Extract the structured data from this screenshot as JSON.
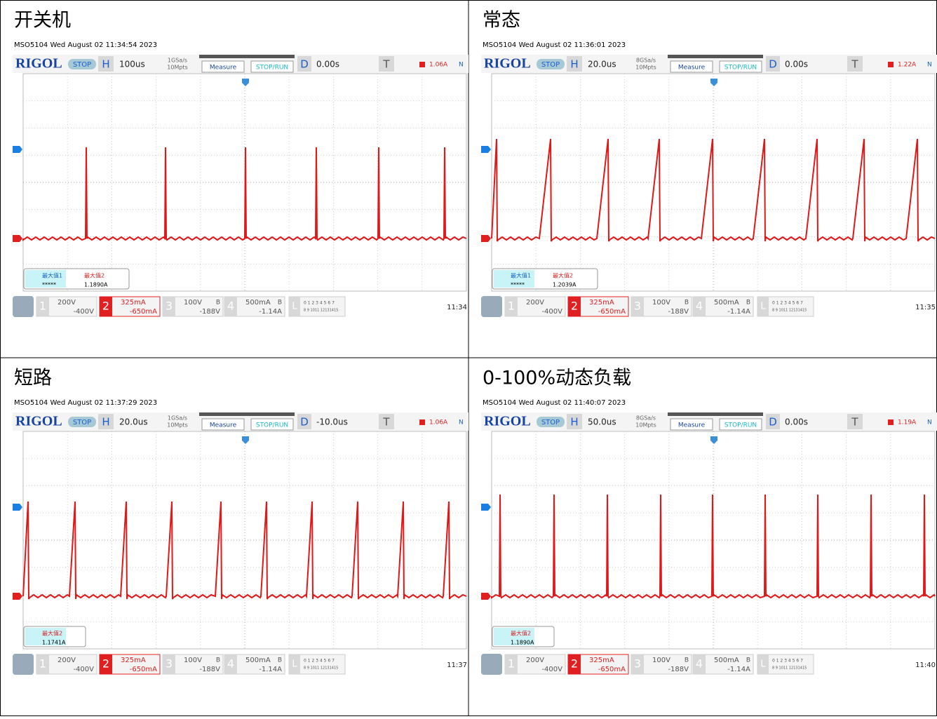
{
  "common": {
    "brand": "RIGOL",
    "stop": "STOP",
    "h": "H",
    "measure": "Measure",
    "stoprun": "STOP/RUN",
    "d": "D",
    "t": "T",
    "n": "N",
    "ch1": "1",
    "ch2": "2",
    "ch3": "3",
    "ch4": "4",
    "l": "L",
    "b": "B",
    "ch1_scale": "200V",
    "ch1_offset": "-400V",
    "ch2_scale": "325mA",
    "ch2_offset": "-650mA",
    "ch3_scale": "100V",
    "ch3_offset": "-188V",
    "ch4_scale": "500mA",
    "ch4_offset": "-1.14A",
    "digital1": "0 1 2 3 4 5 6 7",
    "digital2": "8 9 1011 12131415"
  },
  "panels": [
    {
      "title": "开关机",
      "header": "MSO5104  Wed August 02 11:34:54 2023",
      "timebase": "100us",
      "sample_rate": "1GSa/s",
      "memory": "10Mpts",
      "delay": "0.00s",
      "trigger_level": "1.06A",
      "measurements": [
        {
          "label": "最大值1",
          "value": "*****",
          "color": "#1a5fd0"
        },
        {
          "label": "最大值2",
          "value": "1.1890A",
          "color": "#e02020"
        }
      ],
      "clock": "11:34"
    },
    {
      "title": "常态",
      "header": "MSO5104  Wed August 02 11:36:01 2023",
      "timebase": "20.0us",
      "sample_rate": "8GSa/s",
      "memory": "10Mpts",
      "delay": "0.00s",
      "trigger_level": "1.22A",
      "measurements": [
        {
          "label": "最大值1",
          "value": "*****",
          "color": "#1a5fd0"
        },
        {
          "label": "最大值2",
          "value": "1.2039A",
          "color": "#e02020"
        }
      ],
      "clock": "11:35"
    },
    {
      "title": "短路",
      "header": "MSO5104  Wed August 02 11:37:29 2023",
      "timebase": "20.0us",
      "sample_rate": "1GSa/s",
      "memory": "10Mpts",
      "delay": "-10.0us",
      "trigger_level": "1.06A",
      "measurements": [
        {
          "label": "最大值2",
          "value": "1.1741A",
          "color": "#e02020"
        }
      ],
      "clock": "11:37"
    },
    {
      "title": "0-100%动态负载",
      "header": "MSO5104  Wed August 02 11:40:07 2023",
      "timebase": "50.0us",
      "sample_rate": "8GSa/s",
      "memory": "10Mpts",
      "delay": "0.00s",
      "trigger_level": "1.19A",
      "measurements": [
        {
          "label": "最大值2",
          "value": "1.1890A",
          "color": "#e02020"
        }
      ],
      "clock": "11:40"
    }
  ]
}
